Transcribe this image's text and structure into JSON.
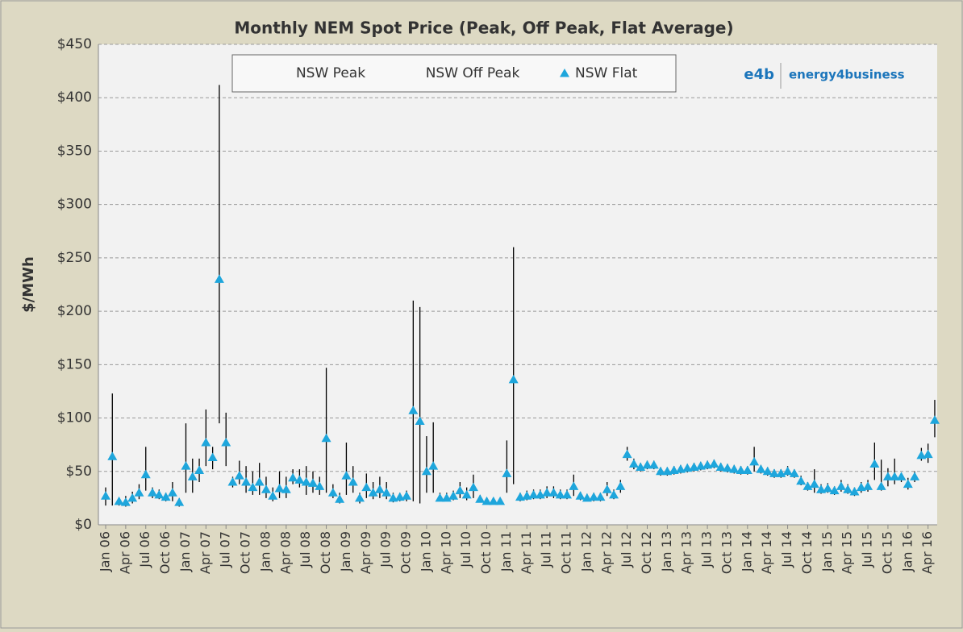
{
  "chart_data": {
    "type": "hilo",
    "title": "Monthly NEM Spot Price (Peak, Off Peak, Flat Average)",
    "y_label": "$/MWh",
    "logo_mark": "e4b",
    "logo_text": "energy4business",
    "categories": [
      "Jan 06",
      null,
      null,
      "Apr 06",
      null,
      null,
      "Jul 06",
      null,
      null,
      "Oct 06",
      null,
      null,
      "Jan 07",
      null,
      null,
      "Apr 07",
      null,
      null,
      "Jul 07",
      null,
      null,
      "Oct 07",
      null,
      null,
      "Jan 08",
      null,
      null,
      "Apr 08",
      null,
      null,
      "Jul 08",
      null,
      null,
      "Oct 08",
      null,
      null,
      "Jan 09",
      null,
      null,
      "Apr 09",
      null,
      null,
      "Jul 09",
      null,
      null,
      "Oct 09",
      null,
      null,
      "Jan 10",
      null,
      null,
      "Apr 10",
      null,
      null,
      "Jul 10",
      null,
      null,
      "Oct 10",
      null,
      null,
      "Jan 11",
      null,
      null,
      "Apr 11",
      null,
      null,
      "Jul 11",
      null,
      null,
      "Oct 11",
      null,
      null,
      "Jan 12",
      null,
      null,
      "Apr 12",
      null,
      null,
      "Jul 12",
      null,
      null,
      "Oct 12",
      null,
      null,
      "Jan 13",
      null,
      null,
      "Apr 13",
      null,
      null,
      "Jul 13",
      null,
      null,
      "Oct 13",
      null,
      null,
      "Jan 14",
      null,
      null,
      "Apr 14",
      null,
      null,
      "Jul 14",
      null,
      null,
      "Oct 14",
      null,
      null,
      "Jan 15",
      null,
      null,
      "Apr 15",
      null,
      null,
      "Jul 15",
      null,
      null,
      "Oct 15",
      null,
      null,
      "Jan 16",
      null,
      null,
      "Apr 16",
      null
    ],
    "series": [
      {
        "name": "NSW Peak",
        "color": "#000000",
        "values": [
          35,
          123,
          25,
          27,
          31,
          38,
          73,
          35,
          33,
          30,
          40,
          25,
          95,
          62,
          62,
          108,
          73,
          412,
          105,
          45,
          60,
          55,
          50,
          58,
          45,
          35,
          50,
          45,
          52,
          52,
          55,
          50,
          45,
          147,
          38,
          30,
          77,
          55,
          30,
          48,
          40,
          45,
          40,
          30,
          30,
          32,
          210,
          204,
          83,
          96,
          30,
          30,
          32,
          40,
          35,
          47,
          28,
          25,
          25,
          25,
          79,
          260,
          30,
          32,
          33,
          33,
          36,
          36,
          33,
          33,
          47,
          31,
          29,
          30,
          30,
          40,
          33,
          42,
          73,
          62,
          58,
          60,
          60,
          54,
          54,
          55,
          56,
          57,
          58,
          59,
          60,
          61,
          58,
          57,
          56,
          55,
          55,
          73,
          56,
          54,
          52,
          52,
          55,
          52,
          46,
          40,
          52,
          38,
          39,
          36,
          42,
          38,
          35,
          40,
          42,
          77,
          61,
          53,
          62,
          44,
          44,
          50,
          72,
          76,
          117
        ]
      },
      {
        "name": "NSW Off Peak",
        "color": "#000000",
        "values": [
          18,
          18,
          18,
          17,
          20,
          24,
          32,
          25,
          24,
          22,
          22,
          17,
          30,
          30,
          40,
          55,
          52,
          95,
          55,
          35,
          38,
          30,
          28,
          28,
          25,
          22,
          25,
          25,
          38,
          35,
          28,
          30,
          28,
          30,
          25,
          20,
          28,
          30,
          20,
          25,
          24,
          25,
          24,
          21,
          22,
          22,
          22,
          20,
          30,
          30,
          22,
          22,
          23,
          25,
          23,
          25,
          21,
          20,
          20,
          20,
          30,
          38,
          22,
          23,
          24,
          24,
          25,
          25,
          24,
          24,
          27,
          23,
          22,
          22,
          22,
          27,
          24,
          30,
          60,
          52,
          50,
          52,
          52,
          46,
          46,
          47,
          48,
          49,
          50,
          51,
          52,
          53,
          50,
          49,
          48,
          47,
          47,
          50,
          48,
          46,
          44,
          44,
          46,
          44,
          37,
          32,
          30,
          29,
          30,
          28,
          31,
          29,
          27,
          30,
          31,
          42,
          32,
          36,
          38,
          40,
          33,
          40,
          60,
          58,
          82
        ]
      },
      {
        "name": "NSW Flat",
        "color": "#1ea6dc",
        "marker": "triangle",
        "values": [
          27,
          64,
          22,
          21,
          25,
          30,
          47,
          30,
          28,
          26,
          30,
          21,
          55,
          45,
          51,
          77,
          63,
          230,
          77,
          40,
          46,
          40,
          35,
          40,
          33,
          27,
          34,
          33,
          44,
          42,
          40,
          39,
          36,
          81,
          30,
          24,
          46,
          40,
          25,
          35,
          30,
          33,
          30,
          25,
          26,
          27,
          107,
          97,
          50,
          55,
          25,
          25,
          27,
          32,
          28,
          35,
          24,
          22,
          22,
          22,
          48,
          136,
          26,
          27,
          28,
          28,
          30,
          30,
          28,
          28,
          36,
          27,
          25,
          26,
          26,
          33,
          28,
          36,
          66,
          57,
          54,
          56,
          56,
          50,
          50,
          51,
          52,
          53,
          54,
          55,
          56,
          57,
          54,
          53,
          52,
          51,
          51,
          59,
          52,
          50,
          48,
          48,
          50,
          48,
          41,
          36,
          38,
          33,
          34,
          32,
          36,
          33,
          31,
          35,
          36,
          57,
          36,
          45,
          45,
          45,
          38,
          45,
          65,
          66,
          98
        ]
      }
    ],
    "ylim": [
      0,
      450
    ],
    "yticks": [
      {
        "value": 0,
        "label": "$0"
      },
      {
        "value": 50,
        "label": "$50"
      },
      {
        "value": 100,
        "label": "$100"
      },
      {
        "value": 150,
        "label": "$150"
      },
      {
        "value": 200,
        "label": "$200"
      },
      {
        "value": 250,
        "label": "$250"
      },
      {
        "value": 300,
        "label": "$300"
      },
      {
        "value": 350,
        "label": "$350"
      },
      {
        "value": 400,
        "label": "$400"
      },
      {
        "value": 450,
        "label": "$450"
      }
    ],
    "grid": true,
    "legend": "top"
  }
}
